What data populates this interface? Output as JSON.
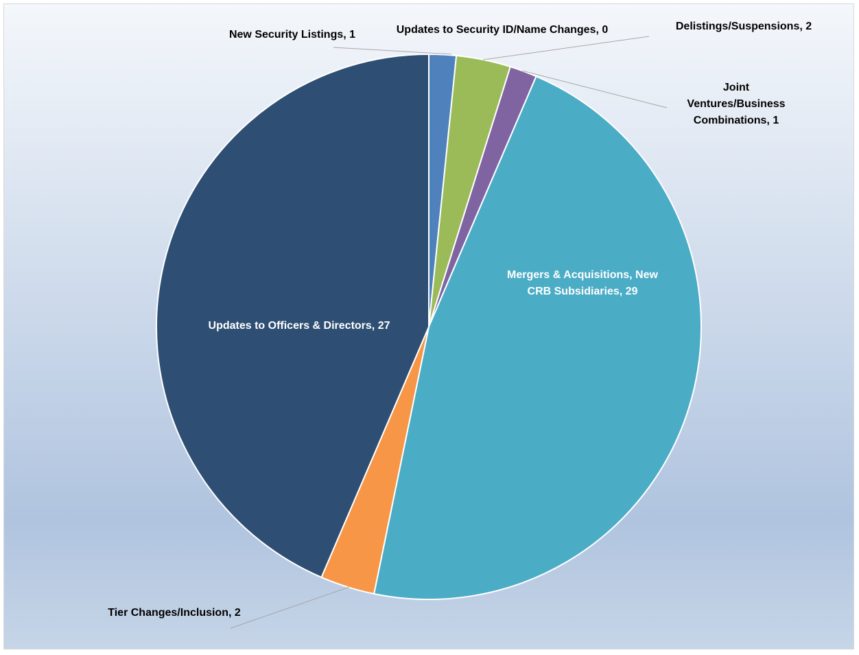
{
  "chart_data": {
    "type": "pie",
    "title": "",
    "start_angle_deg": 0,
    "direction": "clockwise",
    "colors": {
      "background_top": "#f4f7fb",
      "background_mid": "#b0c4df",
      "background_bottom": "#c6d5e7",
      "slice_border": "#ffffff",
      "leader_line": "#a6a6a6",
      "outside_label": "#000000",
      "inside_label": "#ffffff"
    },
    "slices": [
      {
        "label": "New Security Listings",
        "value": 1,
        "text": "New Security Listings, 1",
        "color": "#4f81bd",
        "label_position": "outside"
      },
      {
        "label": "Updates to Security ID/Name Changes",
        "value": 0,
        "text": "Updates to Security ID/Name Changes, 0",
        "color": "#c0504d",
        "label_position": "outside"
      },
      {
        "label": "Delistings/Suspensions",
        "value": 2,
        "text": "Delistings/Suspensions, 2",
        "color": "#9bbb59",
        "label_position": "outside"
      },
      {
        "label": "Joint Ventures/Business Combinations",
        "value": 1,
        "text_lines": [
          "Joint",
          "Ventures/Business",
          "Combinations, 1"
        ],
        "color": "#8064a2",
        "label_position": "outside"
      },
      {
        "label": "Mergers & Acquisitions, New CRB Subsidiaries",
        "value": 29,
        "text_lines": [
          "Mergers & Acquisitions, New",
          "CRB Subsidiaries, 29"
        ],
        "color": "#4bacc6",
        "label_position": "inside"
      },
      {
        "label": "Tier Changes/Inclusion",
        "value": 2,
        "text": "Tier Changes/Inclusion, 2",
        "color": "#f79646",
        "label_position": "outside"
      },
      {
        "label": "Updates to Officers & Directors",
        "value": 27,
        "text": "Updates to Officers & Directors, 27",
        "color": "#2e4f73",
        "label_position": "inside"
      }
    ]
  }
}
